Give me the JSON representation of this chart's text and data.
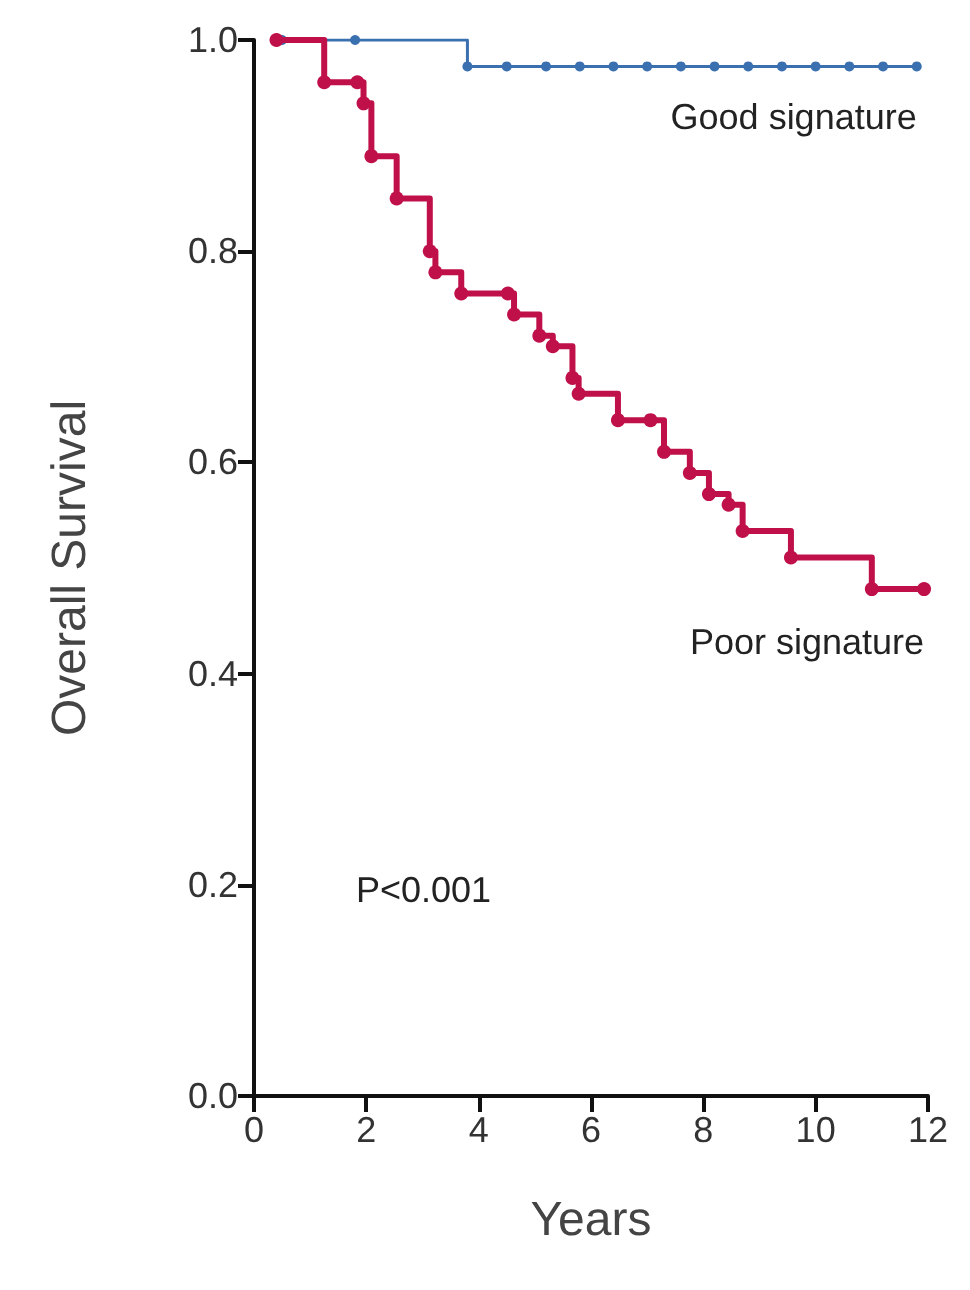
{
  "chart_data": {
    "type": "step",
    "xlabel": "Years",
    "ylabel": "Overall Survival",
    "xlim": [
      0,
      12
    ],
    "xticks": [
      0,
      2,
      4,
      6,
      8,
      10,
      12
    ],
    "ylim": [
      0,
      1
    ],
    "yticks": [
      {
        "value": 0,
        "label": "0.0"
      },
      {
        "value": 0.2,
        "label": "0.2"
      },
      {
        "value": 0.4,
        "label": "0.4"
      },
      {
        "value": 0.6,
        "label": "0.6"
      },
      {
        "value": 0.8,
        "label": "0.8"
      },
      {
        "value": 1,
        "label": "1.0"
      }
    ],
    "grid": false,
    "legend": false,
    "marker": "circle",
    "line_style": "solid",
    "annotations": [
      "P<0.001"
    ],
    "series": [
      {
        "name": "Good signature",
        "color": "#3a6fb0",
        "x": [
          0.5,
          1.8,
          3.8,
          4.5,
          5.2,
          5.8,
          6.4,
          7,
          7.6,
          8.2,
          8.8,
          9.4,
          10,
          10.6,
          11.2,
          11.8
        ],
        "values": [
          1,
          1,
          0.975,
          0.975,
          0.975,
          0.975,
          0.975,
          0.975,
          0.975,
          0.975,
          0.975,
          0.975,
          0.975,
          0.975,
          0.975,
          0.975
        ]
      },
      {
        "name": "Poor signature",
        "color": "#c0104a",
        "x": [
          0.4,
          1.25,
          1.84,
          1.95,
          2.09,
          2.54,
          3.13,
          3.23,
          3.69,
          4.52,
          4.63,
          5.08,
          5.32,
          5.67,
          5.78,
          6.48,
          7.06,
          7.3,
          7.76,
          8.1,
          8.45,
          8.7,
          9.56,
          11,
          11.93
        ],
        "values": [
          1,
          0.96,
          0.96,
          0.94,
          0.89,
          0.85,
          0.8,
          0.78,
          0.76,
          0.76,
          0.74,
          0.72,
          0.71,
          0.68,
          0.665,
          0.64,
          0.64,
          0.61,
          0.59,
          0.57,
          0.56,
          0.535,
          0.51,
          0.48,
          0.48
        ]
      }
    ]
  }
}
